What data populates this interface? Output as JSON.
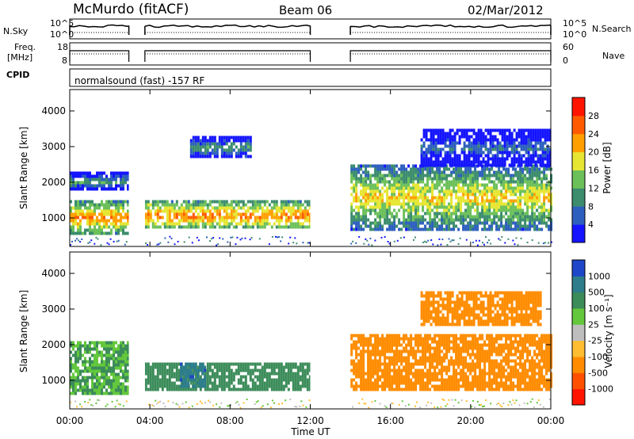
{
  "header": {
    "station": "McMurdo (fitACF)",
    "beam": "Beam 06",
    "date": "02/Mar/2012"
  },
  "top_panels": {
    "nsky_label": "N.Sky",
    "nsky_ticks": [
      "10^5",
      "10^0"
    ],
    "nsearch_label": "N.Search",
    "freq_label_1": "Freq.",
    "freq_label_2": "[MHz]",
    "freq_ticks": [
      "18",
      "8"
    ],
    "nave_label": "Nave",
    "nave_ticks": [
      "60",
      "0"
    ],
    "cpid_label": "CPID",
    "cpid_text": "normalsound (fast) -157 RF"
  },
  "chart_data": [
    {
      "type": "heatmap",
      "title": "Power",
      "ylabel": "Slant Range [km]",
      "xlabel": "Time UT",
      "colorbar_label": "Power [dB]",
      "x_range_hours": [
        0,
        24
      ],
      "ylim": [
        200,
        4600
      ],
      "y_ticks": [
        "1000",
        "2000",
        "3000",
        "4000"
      ],
      "colorbar_ticks": [
        "4",
        "8",
        "12",
        "16",
        "20",
        "24",
        "28"
      ],
      "colorbar_colors": [
        "#1414ff",
        "#2d5fbf",
        "#3c8c6e",
        "#6cc05a",
        "#e6e632",
        "#ffa000",
        "#ff5a00",
        "#ff1400"
      ],
      "data_gaps_hours": [
        [
          2.95,
          3.75
        ],
        [
          12.0,
          14.0
        ]
      ],
      "bands": [
        {
          "hours": [
            0.0,
            2.95
          ],
          "range_km": [
            600,
            1500
          ],
          "dB": 24
        },
        {
          "hours": [
            3.75,
            12.0
          ],
          "range_km": [
            700,
            1500
          ],
          "dB": 24
        },
        {
          "hours": [
            14.0,
            24.0
          ],
          "range_km": [
            700,
            2500
          ],
          "dB": 20
        },
        {
          "hours": [
            0.0,
            2.95
          ],
          "range_km": [
            1800,
            2300
          ],
          "dB": 12
        },
        {
          "hours": [
            6.0,
            9.0
          ],
          "range_km": [
            2700,
            3300
          ],
          "dB": 12
        },
        {
          "hours": [
            17.5,
            24.0
          ],
          "range_km": [
            2500,
            3500
          ],
          "dB": 8
        }
      ]
    },
    {
      "type": "heatmap",
      "title": "Velocity",
      "ylabel": "Slant Range [km]",
      "xlabel": "Time UT",
      "colorbar_label": "Velocity [m s⁻¹]",
      "x_range_hours": [
        0,
        24
      ],
      "ylim": [
        200,
        4600
      ],
      "y_ticks": [
        "1000",
        "2000",
        "3000",
        "4000"
      ],
      "colorbar_ticks": [
        "1000",
        "500",
        "100",
        "25",
        "-25",
        "-100",
        "-500",
        "-1000"
      ],
      "colorbar_colors": [
        "#1e46c8",
        "#2d7d8c",
        "#3c8c5a",
        "#64c83c",
        "#bebebe",
        "#ffbe32",
        "#ff8c00",
        "#ff5000",
        "#ff1400"
      ],
      "data_gaps_hours": [
        [
          2.95,
          3.75
        ],
        [
          12.0,
          14.0
        ]
      ],
      "bands": [
        {
          "hours": [
            0.0,
            2.95
          ],
          "range_km": [
            600,
            2100
          ],
          "velocity": 100
        },
        {
          "hours": [
            3.75,
            12.0
          ],
          "range_km": [
            700,
            1500
          ],
          "velocity": 300
        },
        {
          "hours": [
            5.5,
            6.8
          ],
          "range_km": [
            800,
            1500
          ],
          "velocity": 800
        },
        {
          "hours": [
            14.0,
            24.0
          ],
          "range_km": [
            700,
            2300
          ],
          "velocity": -300
        },
        {
          "hours": [
            17.5,
            23.5
          ],
          "range_km": [
            2600,
            3500
          ],
          "velocity": -200
        }
      ]
    }
  ],
  "x_axis": {
    "ticks": [
      "00:00",
      "04:00",
      "08:00",
      "12:00",
      "16:00",
      "20:00",
      "00:00"
    ],
    "label": "Time UT"
  }
}
